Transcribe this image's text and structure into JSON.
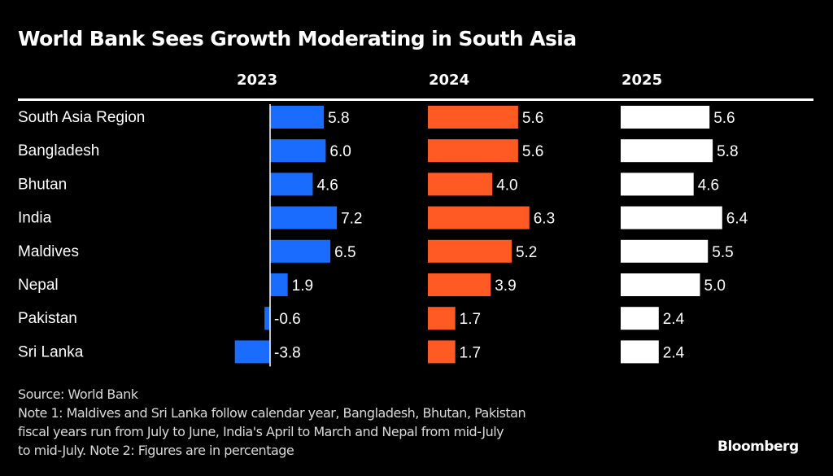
{
  "chart_data": {
    "type": "bar",
    "orientation": "horizontal",
    "title": "World Bank Sees Growth Moderating in South Asia",
    "categories": [
      "South Asia Region",
      "Bangladesh",
      "Bhutan",
      "India",
      "Maldives",
      "Nepal",
      "Pakistan",
      "Sri Lanka"
    ],
    "series": [
      {
        "name": "2023",
        "color": "#1a6cff",
        "values": [
          5.8,
          6.0,
          4.6,
          7.2,
          6.5,
          1.9,
          -0.6,
          -3.8
        ],
        "labels": [
          "5.8",
          "6.0",
          "4.6",
          "7.2",
          "6.5",
          "1.9",
          "-0.6",
          "-3.8"
        ]
      },
      {
        "name": "2024",
        "color": "#ff5a24",
        "values": [
          5.6,
          5.6,
          4.0,
          6.3,
          5.2,
          3.9,
          1.7,
          1.7
        ],
        "labels": [
          "5.6",
          "5.6",
          "4.0",
          "6.3",
          "5.2",
          "3.9",
          "1.7",
          "1.7"
        ]
      },
      {
        "name": "2025",
        "color": "#ffffff",
        "values": [
          5.6,
          5.8,
          4.6,
          6.4,
          5.5,
          5.0,
          2.4,
          2.4
        ],
        "labels": [
          "5.6",
          "5.8",
          "4.6",
          "6.4",
          "5.5",
          "5.0",
          "2.4",
          "2.4"
        ]
      }
    ],
    "xlabel": "",
    "ylabel": "",
    "unit": "percent",
    "grid": false,
    "legend": "none"
  },
  "source": "Source: World Bank",
  "notes": [
    "Note 1: Maldives and Sri Lanka follow calendar year, Bangladesh, Bhutan, Pakistan",
    "fiscal years run from July to June, India's April to March and Nepal from mid-July",
    "to mid-July. Note 2: Figures are in percentage"
  ],
  "brand": "Bloomberg"
}
